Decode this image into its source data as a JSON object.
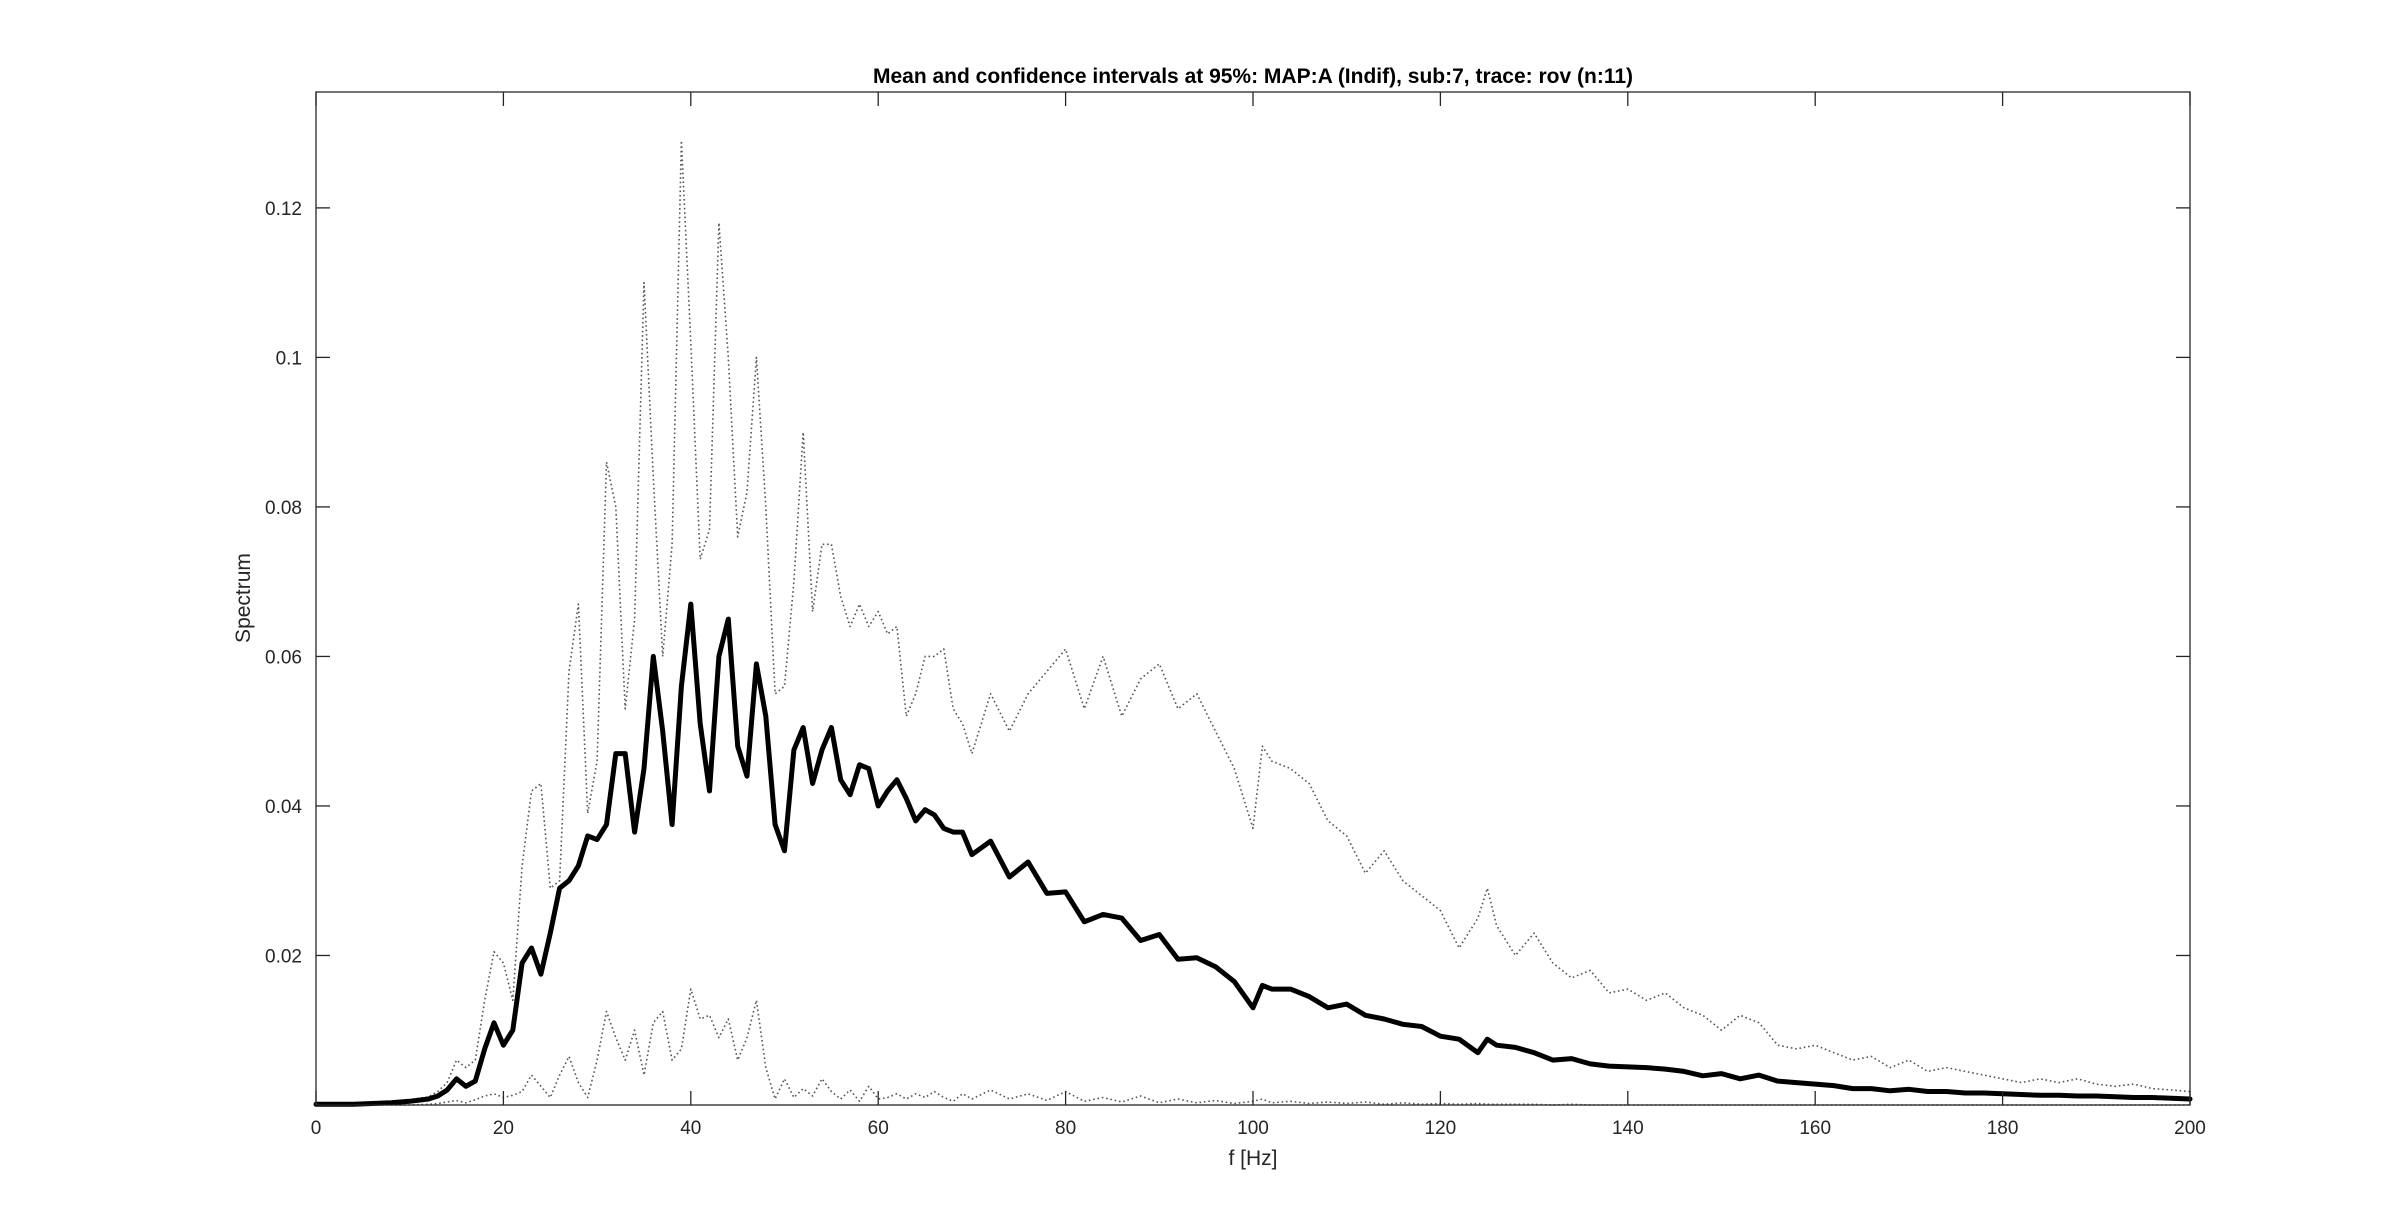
{
  "chart_data": {
    "type": "line",
    "title": "Mean and confidence intervals at 95%: MAP:A (Indif), sub:7, trace: rov (n:11)",
    "xlabel": "f [Hz]",
    "ylabel": "Spectrum",
    "xlim": [
      0,
      200
    ],
    "ylim": [
      0,
      0.1355
    ],
    "xticks": [
      0,
      20,
      40,
      60,
      80,
      100,
      120,
      140,
      160,
      180,
      200
    ],
    "xtick_labels": [
      "0",
      "20",
      "40",
      "60",
      "80",
      "100",
      "120",
      "140",
      "160",
      "180",
      "200"
    ],
    "yticks": [
      0.02,
      0.04,
      0.06,
      0.08,
      0.1,
      0.12
    ],
    "ytick_labels": [
      "0.02",
      "0.04",
      "0.06",
      "0.08",
      "0.1",
      "0.12"
    ],
    "grid": false,
    "box": true,
    "colors": {
      "mean": "#000000",
      "ci": "#555555",
      "axes": "#262626"
    },
    "x": [
      0,
      2,
      4,
      6,
      8,
      10,
      12,
      13,
      14,
      15,
      16,
      17,
      18,
      19,
      20,
      21,
      22,
      23,
      24,
      25,
      26,
      27,
      28,
      29,
      30,
      31,
      32,
      33,
      34,
      35,
      36,
      37,
      38,
      39,
      40,
      41,
      42,
      43,
      44,
      45,
      46,
      47,
      48,
      49,
      50,
      51,
      52,
      53,
      54,
      55,
      56,
      57,
      58,
      59,
      60,
      61,
      62,
      63,
      64,
      65,
      66,
      67,
      68,
      69,
      70,
      72,
      74,
      76,
      78,
      80,
      82,
      84,
      86,
      88,
      90,
      92,
      94,
      96,
      98,
      100,
      101,
      102,
      104,
      106,
      108,
      110,
      112,
      114,
      116,
      118,
      120,
      122,
      124,
      125,
      126,
      128,
      130,
      132,
      134,
      136,
      138,
      140,
      142,
      144,
      146,
      148,
      150,
      152,
      154,
      156,
      158,
      160,
      162,
      164,
      166,
      168,
      170,
      172,
      174,
      176,
      178,
      180,
      182,
      184,
      186,
      188,
      190,
      192,
      194,
      196,
      198,
      200
    ],
    "series": [
      {
        "role": "mean",
        "style": "solid-thick",
        "values": [
          0.0001,
          0.0001,
          0.0001,
          0.0002,
          0.0003,
          0.0005,
          0.0008,
          0.0012,
          0.002,
          0.0035,
          0.0025,
          0.0032,
          0.0075,
          0.011,
          0.008,
          0.01,
          0.019,
          0.021,
          0.0175,
          0.023,
          0.029,
          0.03,
          0.032,
          0.036,
          0.0355,
          0.0375,
          0.047,
          0.047,
          0.0365,
          0.045,
          0.06,
          0.05,
          0.0375,
          0.056,
          0.067,
          0.051,
          0.042,
          0.06,
          0.065,
          0.048,
          0.044,
          0.059,
          0.052,
          0.0375,
          0.034,
          0.0475,
          0.0505,
          0.043,
          0.0475,
          0.0505,
          0.0435,
          0.0415,
          0.0455,
          0.045,
          0.04,
          0.042,
          0.0435,
          0.041,
          0.038,
          0.0395,
          0.0388,
          0.037,
          0.0365,
          0.0365,
          0.0335,
          0.0353,
          0.0305,
          0.0325,
          0.0283,
          0.0285,
          0.0245,
          0.0255,
          0.025,
          0.022,
          0.0228,
          0.0195,
          0.0197,
          0.0185,
          0.0165,
          0.013,
          0.016,
          0.0155,
          0.0155,
          0.0145,
          0.013,
          0.0135,
          0.012,
          0.0115,
          0.0108,
          0.0105,
          0.0092,
          0.0088,
          0.007,
          0.0088,
          0.008,
          0.0077,
          0.007,
          0.006,
          0.0062,
          0.0055,
          0.0052,
          0.0051,
          0.005,
          0.0048,
          0.0045,
          0.0039,
          0.0042,
          0.0035,
          0.004,
          0.0032,
          0.003,
          0.0028,
          0.0026,
          0.0022,
          0.0022,
          0.0019,
          0.0021,
          0.0018,
          0.0018,
          0.0016,
          0.0016,
          0.0015,
          0.0014,
          0.0013,
          0.0013,
          0.0012,
          0.0012,
          0.0011,
          0.001,
          0.001,
          0.0009,
          0.0008
        ]
      },
      {
        "role": "upper-ci",
        "style": "dotted",
        "values": [
          0.0002,
          0.0002,
          0.0002,
          0.0003,
          0.0004,
          0.0007,
          0.0011,
          0.0018,
          0.003,
          0.006,
          0.005,
          0.006,
          0.014,
          0.0205,
          0.019,
          0.014,
          0.032,
          0.042,
          0.043,
          0.029,
          0.03,
          0.058,
          0.067,
          0.039,
          0.046,
          0.086,
          0.08,
          0.053,
          0.065,
          0.11,
          0.084,
          0.06,
          0.075,
          0.129,
          0.102,
          0.073,
          0.077,
          0.118,
          0.1,
          0.076,
          0.082,
          0.1,
          0.08,
          0.055,
          0.056,
          0.07,
          0.09,
          0.066,
          0.075,
          0.075,
          0.068,
          0.064,
          0.067,
          0.064,
          0.066,
          0.063,
          0.064,
          0.052,
          0.055,
          0.06,
          0.06,
          0.061,
          0.053,
          0.051,
          0.047,
          0.055,
          0.05,
          0.055,
          0.058,
          0.061,
          0.053,
          0.06,
          0.052,
          0.057,
          0.059,
          0.053,
          0.055,
          0.05,
          0.045,
          0.037,
          0.048,
          0.046,
          0.045,
          0.043,
          0.038,
          0.036,
          0.031,
          0.034,
          0.03,
          0.028,
          0.026,
          0.021,
          0.025,
          0.029,
          0.024,
          0.02,
          0.023,
          0.019,
          0.017,
          0.018,
          0.015,
          0.0155,
          0.014,
          0.015,
          0.013,
          0.012,
          0.01,
          0.012,
          0.011,
          0.008,
          0.0075,
          0.008,
          0.007,
          0.006,
          0.0065,
          0.005,
          0.006,
          0.0045,
          0.005,
          0.0045,
          0.004,
          0.0035,
          0.003,
          0.0035,
          0.003,
          0.0035,
          0.0028,
          0.0025,
          0.0028,
          0.0022,
          0.002,
          0.0018
        ]
      },
      {
        "role": "lower-ci",
        "style": "dotted",
        "values": [
          0,
          0,
          0,
          0,
          0,
          0,
          0.0001,
          0.0002,
          0.0004,
          0.0006,
          0.0003,
          0.0007,
          0.0012,
          0.0015,
          0.001,
          0.0013,
          0.0018,
          0.004,
          0.0025,
          0.001,
          0.004,
          0.0065,
          0.003,
          0.001,
          0.006,
          0.0125,
          0.009,
          0.006,
          0.01,
          0.004,
          0.011,
          0.0125,
          0.006,
          0.0075,
          0.0155,
          0.0115,
          0.012,
          0.009,
          0.0115,
          0.006,
          0.009,
          0.014,
          0.005,
          0.0008,
          0.0035,
          0.001,
          0.0022,
          0.0012,
          0.0035,
          0.0018,
          0.0008,
          0.002,
          0.0005,
          0.0025,
          0.0008,
          0.001,
          0.0015,
          0.0008,
          0.0015,
          0.001,
          0.0018,
          0.001,
          0.0005,
          0.0015,
          0.0008,
          0.002,
          0.0008,
          0.0015,
          0.0006,
          0.0018,
          0.0005,
          0.001,
          0.0004,
          0.0012,
          0.0003,
          0.0008,
          0.0003,
          0.0006,
          0.0002,
          0.0005,
          0.0008,
          0.0003,
          0.0005,
          0.0002,
          0.0004,
          0.0002,
          0.0004,
          0.0001,
          0.0003,
          0.0001,
          0.0002,
          0.0001,
          0.0002,
          0.0001,
          0.0001,
          0.0001,
          0.0001,
          0,
          0.0001,
          0,
          0,
          0,
          0,
          0,
          0,
          0,
          0,
          0,
          0,
          0,
          0,
          0,
          0,
          0,
          0,
          0,
          0,
          0,
          0,
          0,
          0,
          0,
          0,
          0,
          0,
          0,
          0,
          0,
          0,
          0,
          0,
          0
        ]
      }
    ]
  }
}
